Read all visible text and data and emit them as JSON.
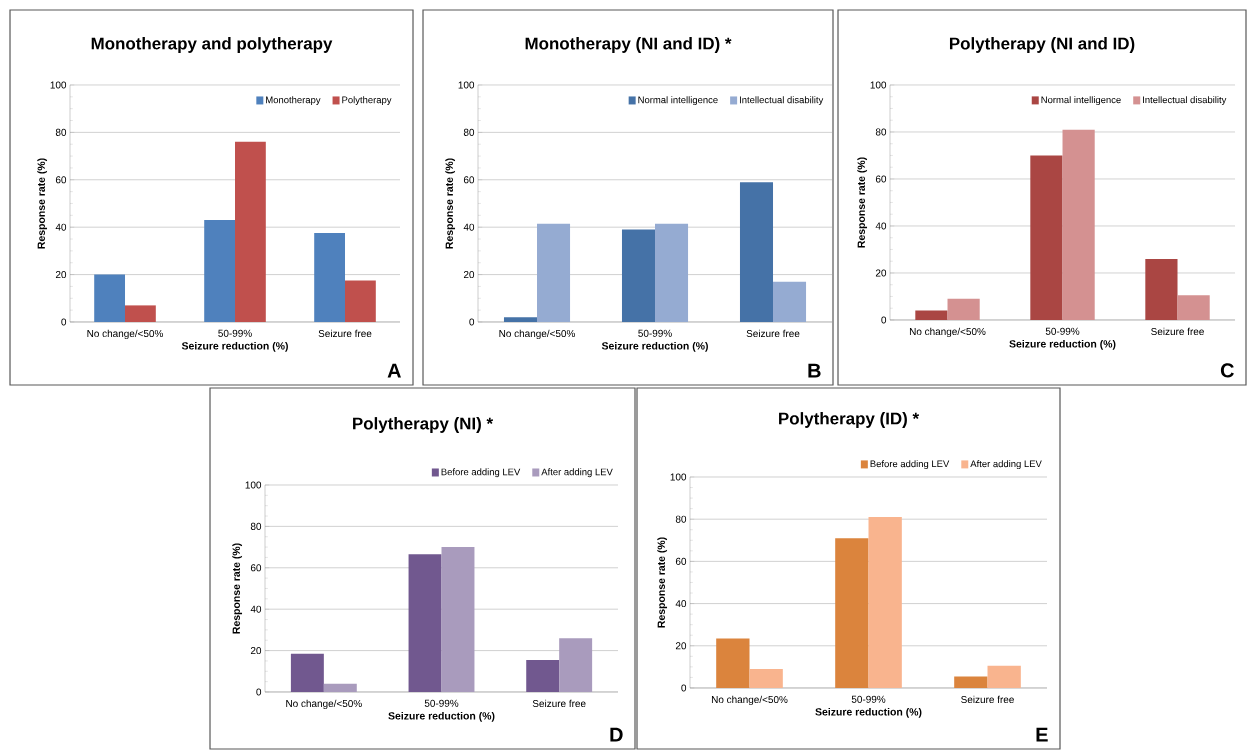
{
  "chart_data": [
    {
      "type": "bar",
      "title": "Monotherapy and polytherapy",
      "xlabel": "Seizure reduction (%)",
      "ylabel": "Response rate (%)",
      "categories": [
        "No change/<50%",
        "50-99%",
        "Seizure free"
      ],
      "series": [
        {
          "name": "Monotherapy",
          "color": "#4f81bd",
          "values": [
            20,
            43,
            37.5
          ]
        },
        {
          "name": "Polytherapy",
          "color": "#c0504d",
          "values": [
            7,
            76,
            17.5
          ]
        }
      ],
      "ylim": [
        0,
        100
      ],
      "yticks": [
        0,
        20,
        40,
        60,
        80,
        100
      ],
      "grid": "y",
      "legend": "top right",
      "annotations": [
        "A"
      ]
    },
    {
      "type": "bar",
      "title": "Monotherapy (NI and ID) *",
      "xlabel": "Seizure reduction (%)",
      "ylabel": "Response rate (%)",
      "categories": [
        "No change/<50%",
        "50-99%",
        "Seizure free"
      ],
      "series": [
        {
          "name": "Normal intelligence",
          "color": "#4572a7",
          "values": [
            2,
            39,
            59
          ]
        },
        {
          "name": "Intellectual disability",
          "color": "#95abd2",
          "values": [
            41.5,
            41.5,
            17
          ]
        }
      ],
      "ylim": [
        0,
        100
      ],
      "yticks": [
        0,
        20,
        40,
        60,
        80,
        100
      ],
      "grid": "y",
      "legend": "top right",
      "annotations": [
        "B"
      ]
    },
    {
      "type": "bar",
      "title": "Polytherapy (NI and ID)",
      "xlabel": "Seizure reduction (%)",
      "ylabel": "Response rate (%)",
      "categories": [
        "No change/<50%",
        "50-99%",
        "Seizure free"
      ],
      "series": [
        {
          "name": "Normal intelligence",
          "color": "#aa4643",
          "values": [
            4,
            70,
            26
          ]
        },
        {
          "name": "Intellectual disability",
          "color": "#d49191",
          "values": [
            9,
            81,
            10.5
          ]
        }
      ],
      "ylim": [
        0,
        100
      ],
      "yticks": [
        0,
        20,
        40,
        60,
        80,
        100
      ],
      "grid": "y",
      "legend": "top right",
      "annotations": [
        "C"
      ]
    },
    {
      "type": "bar",
      "title": "Polytherapy (NI) *",
      "xlabel": "Seizure reduction (%)",
      "ylabel": "Response rate (%)",
      "categories": [
        "No change/<50%",
        "50-99%",
        "Seizure free"
      ],
      "series": [
        {
          "name": "Before adding LEV",
          "color": "#71588f",
          "values": [
            18.5,
            66.5,
            15.5
          ]
        },
        {
          "name": "After adding LEV",
          "color": "#a99bbd",
          "values": [
            4,
            70,
            26
          ]
        }
      ],
      "ylim": [
        0,
        100
      ],
      "yticks": [
        0,
        20,
        40,
        60,
        80,
        100
      ],
      "grid": "y",
      "legend": "top",
      "annotations": [
        "D"
      ]
    },
    {
      "type": "bar",
      "title": "Polytherapy (ID) *",
      "xlabel": "Seizure reduction (%)",
      "ylabel": "Response rate (%)",
      "categories": [
        "No change/<50%",
        "50-99%",
        "Seizure free"
      ],
      "series": [
        {
          "name": "Before adding LEV",
          "color": "#db843d",
          "values": [
            23.5,
            71,
            5.5
          ]
        },
        {
          "name": "After adding LEV",
          "color": "#f9b48e",
          "values": [
            9,
            81,
            10.5
          ]
        }
      ],
      "ylim": [
        0,
        100
      ],
      "yticks": [
        0,
        20,
        40,
        60,
        80,
        100
      ],
      "grid": "y",
      "legend": "top",
      "annotations": [
        "E"
      ]
    }
  ]
}
